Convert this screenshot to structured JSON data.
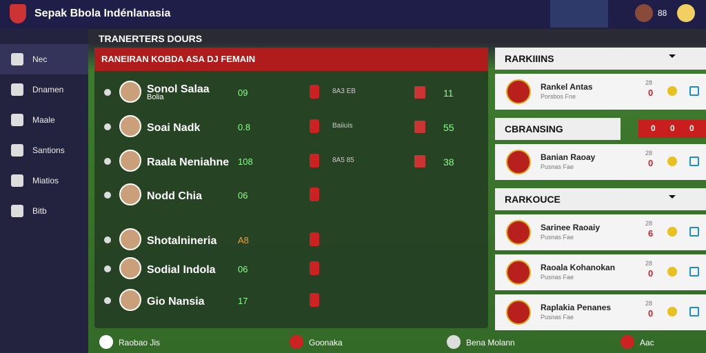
{
  "header": {
    "title": "Sepak Bbola Indénlanasia",
    "score": "88"
  },
  "sidebar": {
    "items": [
      "Nec",
      "Dnamen",
      "Maale",
      "Santions",
      "Miatios",
      "Bitb"
    ]
  },
  "section_title": "TRANERTERS DOURS",
  "panel": {
    "title": "RANEIRAN KOBDA ASA DJ FEMAIN",
    "rows": [
      {
        "name": "Sonol Salaa",
        "sub": "Bolia",
        "stat": "09",
        "mid": "8A3 EB",
        "right": "11"
      },
      {
        "name": "Soai Nadk",
        "stat": "0.8",
        "mid": "Baiiuis",
        "right": "55"
      },
      {
        "name": "Raala Neniahne",
        "stat": "108",
        "mid": "8A5 85",
        "right": "38"
      },
      {
        "name": "Nodd Chia",
        "stat": "06"
      },
      {
        "name": "Shotalnineria",
        "stat": "A8"
      },
      {
        "name": "Sodial Indola",
        "stat": "06"
      },
      {
        "name": "Gio Nansia",
        "stat": "17"
      }
    ]
  },
  "right": {
    "sections": [
      {
        "title": "RARKIIINS",
        "cards": [
          {
            "name": "Rankel Antas",
            "sub": "Porsbos Fne",
            "top": "28",
            "val": "0"
          }
        ]
      },
      {
        "title": "CBRANSING",
        "badges": [
          "0",
          "0",
          "0"
        ],
        "cards": [
          {
            "name": "Banian Raoay",
            "sub": "Pusnas Fae",
            "top": "28",
            "val": "0"
          }
        ]
      },
      {
        "title": "RARKOUCE",
        "cards": [
          {
            "name": "Sarinee Raoaiy",
            "sub": "Pusnas Fae",
            "top": "28",
            "val": "6"
          },
          {
            "name": "Raoala Kohanokan",
            "sub": "Pusnas Fae",
            "top": "28",
            "val": "0"
          },
          {
            "name": "Raplakia Penanes",
            "sub": "Pusnas Fae",
            "top": "28",
            "val": "0"
          }
        ]
      }
    ]
  },
  "footer": {
    "items": [
      "Raobao Jis",
      "Goonaka",
      "Bena Molann",
      "Aac"
    ]
  }
}
